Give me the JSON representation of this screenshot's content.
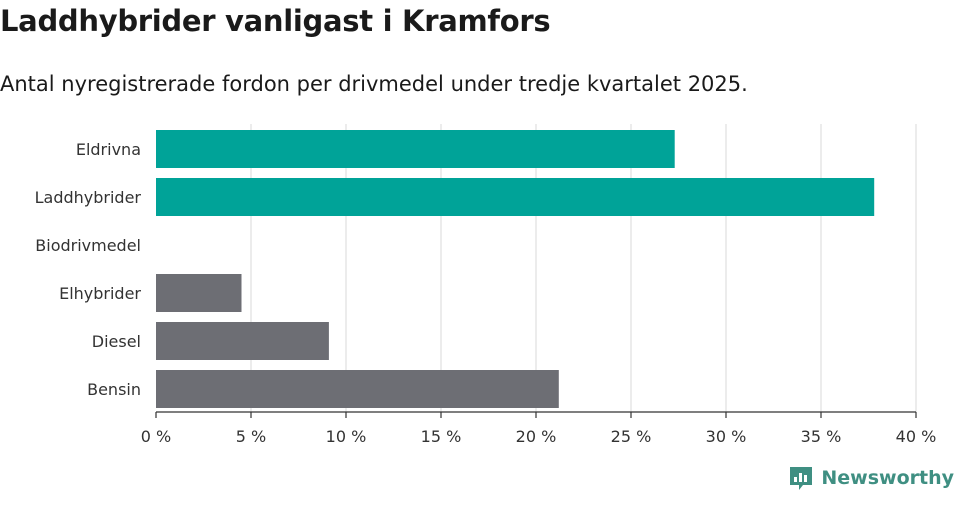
{
  "title": "Laddhybrider vanligast i Kramfors",
  "subtitle": "Antal nyregistrerade fordon per drivmedel under tredje kvartalet 2025.",
  "brand": {
    "name": "Newsworthy",
    "icon": "newsworthy-logo-icon"
  },
  "colors": {
    "highlight": "#00a398",
    "other": "#6d6e74",
    "grid": "#d9d9d9",
    "axis": "#333333"
  },
  "chart_data": {
    "type": "bar",
    "orientation": "horizontal",
    "categories": [
      "Eldrivna",
      "Laddhybrider",
      "Biodrivmedel",
      "Elhybrider",
      "Diesel",
      "Bensin"
    ],
    "values": [
      27.3,
      37.8,
      0,
      4.5,
      9.1,
      21.2
    ],
    "highlighted": [
      true,
      true,
      false,
      false,
      false,
      false
    ],
    "xlim": [
      0,
      40
    ],
    "xticks": [
      0,
      5,
      10,
      15,
      20,
      25,
      30,
      35,
      40
    ],
    "xtick_labels": [
      "0 %",
      "5 %",
      "10 %",
      "15 %",
      "20 %",
      "25 %",
      "30 %",
      "35 %",
      "40 %"
    ],
    "unit": "%",
    "grid": true
  }
}
